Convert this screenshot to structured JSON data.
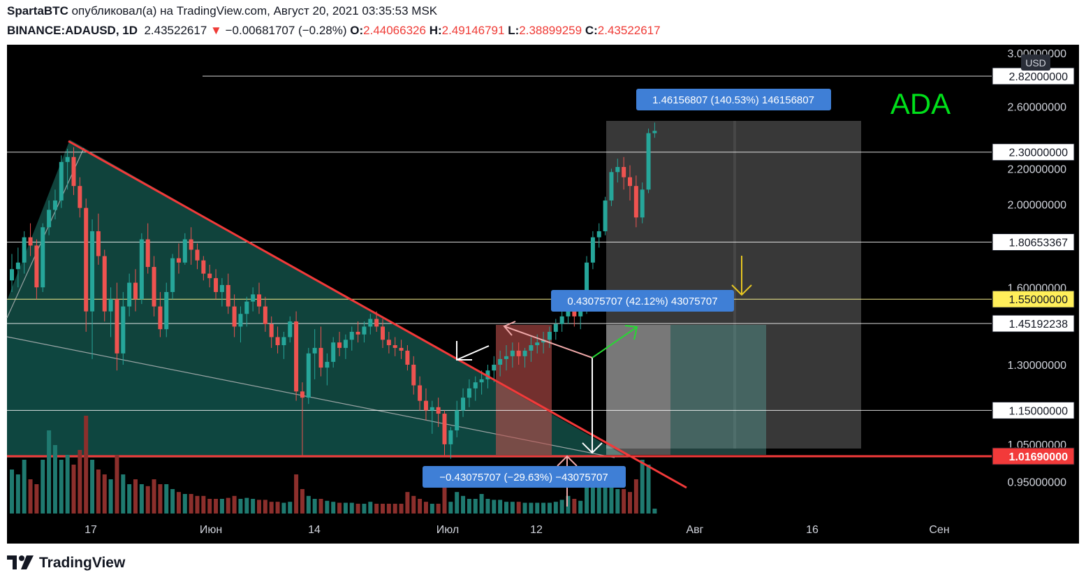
{
  "header": {
    "author": "SpartaBTC",
    "published_text": "опубликовал(а) на TradingView.com, Август 20, 2021 03:35:53 MSK",
    "symbol": "BINANCE:ADAUSD, 1D",
    "last": "2.43522617",
    "arrow": "▼",
    "change": "−0.00681707 (−0.28%)",
    "o_label": "O:",
    "o": "2.44066326",
    "h_label": "H:",
    "h": "2.49146791",
    "l_label": "L:",
    "l": "2.38899259",
    "c_label": "C:",
    "c": "2.43522617"
  },
  "footer": {
    "brand": "TradingView"
  },
  "colors": {
    "background": "#000000",
    "up": "#26a69a",
    "down": "#ef5350",
    "trendline": "#f23a3a",
    "annotation": "#00e01a",
    "measure_label": "#3f7fd6",
    "highlight": "#ffef5a"
  },
  "chart_data": {
    "type": "candlestick",
    "symbol": "BINANCE:ADAUSD",
    "timeframe": "1D",
    "currency": "USD",
    "annotation": "ADA",
    "x_tick_labels": [
      "17",
      "Июн",
      "14",
      "Июл",
      "12",
      "Авг",
      "16",
      "Сен"
    ],
    "y_axis_ticks": [
      "3.00000000",
      "2.60000000",
      "2.20000000",
      "2.00000000",
      "1.60000000",
      "1.30000000",
      "1.05000000",
      "0.95000000"
    ],
    "horizontal_levels": [
      {
        "price": 2.82,
        "label": "2.82000000",
        "style": "white"
      },
      {
        "price": 2.3,
        "label": "2.30000000",
        "style": "white"
      },
      {
        "price": 1.80653367,
        "label": "1.80653367",
        "style": "white"
      },
      {
        "price": 1.55,
        "label": "1.55000000",
        "style": "yellow"
      },
      {
        "price": 1.45192238,
        "label": "1.45192238",
        "style": "white"
      },
      {
        "price": 1.15,
        "label": "1.15000000",
        "style": "white"
      },
      {
        "price": 1.0169,
        "label": "1.01690000",
        "style": "red"
      }
    ],
    "measure_labels": [
      "1.46156807 (140.53%) 146156807",
      "0.43075707 (42.12%) 43075707",
      "−0.43075707 (−29.63%) −43075707"
    ],
    "ylim": [
      0.9,
      3.0
    ],
    "candles": [
      [
        1.63,
        1.75,
        1.58,
        1.68
      ],
      [
        1.68,
        1.78,
        1.6,
        1.71
      ],
      [
        1.71,
        1.86,
        1.66,
        1.83
      ],
      [
        1.83,
        1.9,
        1.74,
        1.79
      ],
      [
        1.79,
        1.82,
        1.55,
        1.6
      ],
      [
        1.6,
        1.9,
        1.58,
        1.88
      ],
      [
        1.88,
        2.02,
        1.84,
        1.97
      ],
      [
        1.97,
        2.08,
        1.92,
        2.02
      ],
      [
        2.02,
        2.28,
        1.98,
        2.24
      ],
      [
        2.24,
        2.32,
        2.08,
        2.27
      ],
      [
        2.27,
        2.33,
        2.05,
        2.1
      ],
      [
        2.1,
        2.15,
        1.93,
        1.98
      ],
      [
        1.98,
        2.03,
        1.42,
        1.5
      ],
      [
        1.5,
        1.92,
        1.32,
        1.86
      ],
      [
        1.86,
        1.95,
        1.7,
        1.74
      ],
      [
        1.74,
        1.77,
        1.46,
        1.5
      ],
      [
        1.5,
        1.6,
        1.4,
        1.55
      ],
      [
        1.55,
        1.62,
        1.28,
        1.34
      ],
      [
        1.34,
        1.58,
        1.3,
        1.52
      ],
      [
        1.52,
        1.66,
        1.48,
        1.62
      ],
      [
        1.62,
        1.68,
        1.5,
        1.55
      ],
      [
        1.55,
        1.85,
        1.53,
        1.82
      ],
      [
        1.82,
        1.9,
        1.66,
        1.69
      ],
      [
        1.69,
        1.74,
        1.48,
        1.52
      ],
      [
        1.52,
        1.58,
        1.4,
        1.43
      ],
      [
        1.43,
        1.62,
        1.4,
        1.58
      ],
      [
        1.58,
        1.75,
        1.55,
        1.73
      ],
      [
        1.73,
        1.8,
        1.66,
        1.71
      ],
      [
        1.71,
        1.85,
        1.7,
        1.82
      ],
      [
        1.82,
        1.88,
        1.7,
        1.77
      ],
      [
        1.77,
        1.8,
        1.68,
        1.72
      ],
      [
        1.72,
        1.74,
        1.63,
        1.66
      ],
      [
        1.66,
        1.7,
        1.6,
        1.64
      ],
      [
        1.64,
        1.68,
        1.55,
        1.58
      ],
      [
        1.58,
        1.64,
        1.52,
        1.61
      ],
      [
        1.61,
        1.66,
        1.49,
        1.52
      ],
      [
        1.52,
        1.57,
        1.4,
        1.44
      ],
      [
        1.44,
        1.52,
        1.38,
        1.49
      ],
      [
        1.49,
        1.56,
        1.44,
        1.54
      ],
      [
        1.54,
        1.6,
        1.5,
        1.57
      ],
      [
        1.57,
        1.62,
        1.49,
        1.52
      ],
      [
        1.52,
        1.56,
        1.42,
        1.45
      ],
      [
        1.45,
        1.48,
        1.36,
        1.4
      ],
      [
        1.4,
        1.44,
        1.34,
        1.37
      ],
      [
        1.37,
        1.42,
        1.32,
        1.4
      ],
      [
        1.4,
        1.48,
        1.38,
        1.46
      ],
      [
        1.46,
        1.5,
        1.18,
        1.21
      ],
      [
        1.21,
        1.24,
        1.02,
        1.19
      ],
      [
        1.19,
        1.36,
        1.17,
        1.34
      ],
      [
        1.34,
        1.43,
        1.25,
        1.36
      ],
      [
        1.36,
        1.44,
        1.26,
        1.29
      ],
      [
        1.29,
        1.34,
        1.23,
        1.31
      ],
      [
        1.31,
        1.4,
        1.29,
        1.38
      ],
      [
        1.38,
        1.42,
        1.33,
        1.36
      ],
      [
        1.36,
        1.41,
        1.32,
        1.39
      ],
      [
        1.39,
        1.44,
        1.35,
        1.42
      ],
      [
        1.42,
        1.46,
        1.38,
        1.41
      ],
      [
        1.41,
        1.46,
        1.38,
        1.44
      ],
      [
        1.44,
        1.49,
        1.41,
        1.47
      ],
      [
        1.47,
        1.5,
        1.42,
        1.44
      ],
      [
        1.44,
        1.47,
        1.36,
        1.39
      ],
      [
        1.39,
        1.42,
        1.34,
        1.37
      ],
      [
        1.37,
        1.4,
        1.33,
        1.36
      ],
      [
        1.36,
        1.39,
        1.32,
        1.35
      ],
      [
        1.35,
        1.37,
        1.28,
        1.3
      ],
      [
        1.3,
        1.33,
        1.2,
        1.23
      ],
      [
        1.23,
        1.26,
        1.15,
        1.18
      ],
      [
        1.18,
        1.22,
        1.12,
        1.15
      ],
      [
        1.15,
        1.18,
        1.08,
        1.16
      ],
      [
        1.16,
        1.19,
        1.1,
        1.14
      ],
      [
        1.14,
        1.15,
        1.02,
        1.05
      ],
      [
        1.05,
        1.1,
        1.01,
        1.09
      ],
      [
        1.09,
        1.18,
        1.07,
        1.15
      ],
      [
        1.15,
        1.22,
        1.13,
        1.19
      ],
      [
        1.19,
        1.25,
        1.16,
        1.22
      ],
      [
        1.22,
        1.26,
        1.18,
        1.24
      ],
      [
        1.24,
        1.28,
        1.2,
        1.25
      ],
      [
        1.25,
        1.3,
        1.22,
        1.28
      ],
      [
        1.28,
        1.33,
        1.24,
        1.3
      ],
      [
        1.3,
        1.35,
        1.26,
        1.32
      ],
      [
        1.32,
        1.37,
        1.28,
        1.33
      ],
      [
        1.33,
        1.38,
        1.29,
        1.35
      ],
      [
        1.35,
        1.38,
        1.3,
        1.33
      ],
      [
        1.33,
        1.36,
        1.29,
        1.35
      ],
      [
        1.35,
        1.4,
        1.31,
        1.37
      ],
      [
        1.37,
        1.41,
        1.34,
        1.38
      ],
      [
        1.38,
        1.42,
        1.34,
        1.39
      ],
      [
        1.39,
        1.44,
        1.36,
        1.42
      ],
      [
        1.42,
        1.47,
        1.39,
        1.45
      ],
      [
        1.45,
        1.5,
        1.42,
        1.48
      ],
      [
        1.48,
        1.56,
        1.45,
        1.52
      ],
      [
        1.52,
        1.56,
        1.44,
        1.48
      ],
      [
        1.48,
        1.51,
        1.43,
        1.5
      ],
      [
        1.5,
        1.74,
        1.49,
        1.71
      ],
      [
        1.71,
        1.86,
        1.68,
        1.83
      ],
      [
        1.83,
        1.9,
        1.78,
        1.86
      ],
      [
        1.86,
        2.04,
        1.84,
        2.02
      ],
      [
        2.02,
        2.2,
        1.99,
        2.18
      ],
      [
        2.18,
        2.26,
        2.12,
        2.21
      ],
      [
        2.21,
        2.27,
        2.08,
        2.15
      ],
      [
        2.15,
        2.22,
        2.02,
        2.1
      ],
      [
        2.1,
        2.16,
        1.88,
        1.93
      ],
      [
        1.93,
        2.12,
        1.9,
        2.08
      ],
      [
        2.08,
        2.45,
        2.06,
        2.42
      ],
      [
        2.42,
        2.49,
        2.39,
        2.435
      ]
    ],
    "volumes": [
      0.45,
      0.4,
      0.55,
      0.35,
      0.3,
      0.55,
      0.85,
      0.7,
      0.55,
      0.6,
      0.5,
      0.65,
      1.0,
      0.55,
      0.45,
      0.4,
      0.35,
      0.6,
      0.4,
      0.3,
      0.35,
      0.3,
      0.28,
      0.35,
      0.3,
      0.3,
      0.25,
      0.22,
      0.2,
      0.2,
      0.18,
      0.18,
      0.15,
      0.15,
      0.15,
      0.16,
      0.18,
      0.15,
      0.16,
      0.15,
      0.14,
      0.14,
      0.12,
      0.12,
      0.11,
      0.12,
      0.4,
      0.25,
      0.18,
      0.15,
      0.15,
      0.13,
      0.12,
      0.11,
      0.11,
      0.11,
      0.1,
      0.1,
      0.12,
      0.1,
      0.1,
      0.1,
      0.1,
      0.1,
      0.22,
      0.18,
      0.15,
      0.12,
      0.1,
      0.1,
      0.3,
      0.12,
      0.22,
      0.18,
      0.15,
      0.15,
      0.2,
      0.15,
      0.14,
      0.14,
      0.12,
      0.12,
      0.12,
      0.11,
      0.11,
      0.11,
      0.11,
      0.11,
      0.12,
      0.14,
      0.18,
      0.15,
      0.13,
      0.28,
      0.35,
      0.3,
      0.38,
      0.4,
      0.25,
      0.25,
      0.22,
      0.35,
      0.55,
      0.5,
      0.05
    ]
  }
}
